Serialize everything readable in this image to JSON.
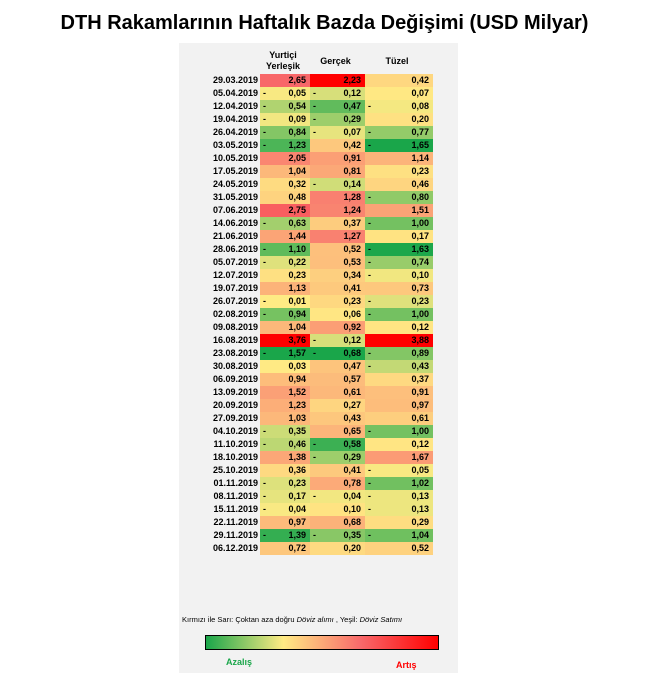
{
  "title": "DTH Rakamlarının Haftalık Bazda Değişimi (USD Milyar)",
  "headers": {
    "col1": "Yurtiçi Yerleşik",
    "col2": "Gerçek",
    "col3": "Tüzel"
  },
  "rows": [
    {
      "date": "29.03.2019",
      "v1": "2,65",
      "s1": "",
      "v2": "2,23",
      "s2": "",
      "v3": "0,42",
      "s3": ""
    },
    {
      "date": "05.04.2019",
      "v1": "0,05",
      "s1": "-",
      "v2": "0,12",
      "s2": "-",
      "v3": "0,07",
      "s3": ""
    },
    {
      "date": "12.04.2019",
      "v1": "0,54",
      "s1": "-",
      "v2": "0,47",
      "s2": "-",
      "v3": "0,08",
      "s3": "-"
    },
    {
      "date": "19.04.2019",
      "v1": "0,09",
      "s1": "-",
      "v2": "0,29",
      "s2": "-",
      "v3": "0,20",
      "s3": ""
    },
    {
      "date": "26.04.2019",
      "v1": "0,84",
      "s1": "-",
      "v2": "0,07",
      "s2": "-",
      "v3": "0,77",
      "s3": "-"
    },
    {
      "date": "03.05.2019",
      "v1": "1,23",
      "s1": "-",
      "v2": "0,42",
      "s2": "",
      "v3": "1,65",
      "s3": "-"
    },
    {
      "date": "10.05.2019",
      "v1": "2,05",
      "s1": "",
      "v2": "0,91",
      "s2": "",
      "v3": "1,14",
      "s3": ""
    },
    {
      "date": "17.05.2019",
      "v1": "1,04",
      "s1": "",
      "v2": "0,81",
      "s2": "",
      "v3": "0,23",
      "s3": ""
    },
    {
      "date": "24.05.2019",
      "v1": "0,32",
      "s1": "",
      "v2": "0,14",
      "s2": "-",
      "v3": "0,46",
      "s3": ""
    },
    {
      "date": "31.05.2019",
      "v1": "0,48",
      "s1": "",
      "v2": "1,28",
      "s2": "",
      "v3": "0,80",
      "s3": "-"
    },
    {
      "date": "07.06.2019",
      "v1": "2,75",
      "s1": "",
      "v2": "1,24",
      "s2": "",
      "v3": "1,51",
      "s3": ""
    },
    {
      "date": "14.06.2019",
      "v1": "0,63",
      "s1": "-",
      "v2": "0,37",
      "s2": "",
      "v3": "1,00",
      "s3": "-"
    },
    {
      "date": "21.06.2019",
      "v1": "1,44",
      "s1": "",
      "v2": "1,27",
      "s2": "",
      "v3": "0,17",
      "s3": ""
    },
    {
      "date": "28.06.2019",
      "v1": "1,10",
      "s1": "-",
      "v2": "0,52",
      "s2": "",
      "v3": "1,63",
      "s3": "-"
    },
    {
      "date": "05.07.2019",
      "v1": "0,22",
      "s1": "-",
      "v2": "0,53",
      "s2": "",
      "v3": "0,74",
      "s3": "-"
    },
    {
      "date": "12.07.2019",
      "v1": "0,23",
      "s1": "",
      "v2": "0,34",
      "s2": "",
      "v3": "0,10",
      "s3": "-"
    },
    {
      "date": "19.07.2019",
      "v1": "1,13",
      "s1": "",
      "v2": "0,41",
      "s2": "",
      "v3": "0,73",
      "s3": ""
    },
    {
      "date": "26.07.2019",
      "v1": "0,01",
      "s1": "-",
      "v2": "0,23",
      "s2": "",
      "v3": "0,23",
      "s3": "-"
    },
    {
      "date": "02.08.2019",
      "v1": "0,94",
      "s1": "-",
      "v2": "0,06",
      "s2": "",
      "v3": "1,00",
      "s3": "-"
    },
    {
      "date": "09.08.2019",
      "v1": "1,04",
      "s1": "",
      "v2": "0,92",
      "s2": "",
      "v3": "0,12",
      "s3": ""
    },
    {
      "date": "16.08.2019",
      "v1": "3,76",
      "s1": "",
      "v2": "0,12",
      "s2": "-",
      "v3": "3,88",
      "s3": ""
    },
    {
      "date": "23.08.2019",
      "v1": "1,57",
      "s1": "-",
      "v2": "0,68",
      "s2": "-",
      "v3": "0,89",
      "s3": "-"
    },
    {
      "date": "30.08.2019",
      "v1": "0,03",
      "s1": "",
      "v2": "0,47",
      "s2": "",
      "v3": "0,43",
      "s3": "-"
    },
    {
      "date": "06.09.2019",
      "v1": "0,94",
      "s1": "",
      "v2": "0,57",
      "s2": "",
      "v3": "0,37",
      "s3": ""
    },
    {
      "date": "13.09.2019",
      "v1": "1,52",
      "s1": "",
      "v2": "0,61",
      "s2": "",
      "v3": "0,91",
      "s3": ""
    },
    {
      "date": "20.09.2019",
      "v1": "1,23",
      "s1": "",
      "v2": "0,27",
      "s2": "",
      "v3": "0,97",
      "s3": ""
    },
    {
      "date": "27.09.2019",
      "v1": "1,03",
      "s1": "",
      "v2": "0,43",
      "s2": "",
      "v3": "0,61",
      "s3": ""
    },
    {
      "date": "04.10.2019",
      "v1": "0,35",
      "s1": "-",
      "v2": "0,65",
      "s2": "",
      "v3": "1,00",
      "s3": "-"
    },
    {
      "date": "11.10.2019",
      "v1": "0,46",
      "s1": "-",
      "v2": "0,58",
      "s2": "-",
      "v3": "0,12",
      "s3": ""
    },
    {
      "date": "18.10.2019",
      "v1": "1,38",
      "s1": "",
      "v2": "0,29",
      "s2": "-",
      "v3": "1,67",
      "s3": ""
    },
    {
      "date": "25.10.2019",
      "v1": "0,36",
      "s1": "",
      "v2": "0,41",
      "s2": "",
      "v3": "0,05",
      "s3": "-"
    },
    {
      "date": "01.11.2019",
      "v1": "0,23",
      "s1": "-",
      "v2": "0,78",
      "s2": "",
      "v3": "1,02",
      "s3": "-"
    },
    {
      "date": "08.11.2019",
      "v1": "0,17",
      "s1": "-",
      "v2": "0,04",
      "s2": "-",
      "v3": "0,13",
      "s3": "-"
    },
    {
      "date": "15.11.2019",
      "v1": "0,04",
      "s1": "-",
      "v2": "0,10",
      "s2": "",
      "v3": "0,13",
      "s3": "-"
    },
    {
      "date": "22.11.2019",
      "v1": "0,97",
      "s1": "",
      "v2": "0,68",
      "s2": "",
      "v3": "0,29",
      "s3": ""
    },
    {
      "date": "29.11.2019",
      "v1": "1,39",
      "s1": "-",
      "v2": "0,35",
      "s2": "-",
      "v3": "1,04",
      "s3": "-"
    },
    {
      "date": "06.12.2019",
      "v1": "0,72",
      "s1": "",
      "v2": "0,20",
      "s2": "",
      "v3": "0,52",
      "s3": ""
    }
  ],
  "note": {
    "part1": "Kırmızı ile Sarı: Çoktan aza doğru ",
    "part2": "Döviz alımı",
    "part3": " , Yeşil: ",
    "part4": "Döviz Satımı"
  },
  "legend": {
    "left": "Azalış",
    "right": "Artış",
    "colors": [
      "#1aa64a",
      "#ffeb84",
      "#f8696b",
      "#ff0000"
    ]
  }
}
